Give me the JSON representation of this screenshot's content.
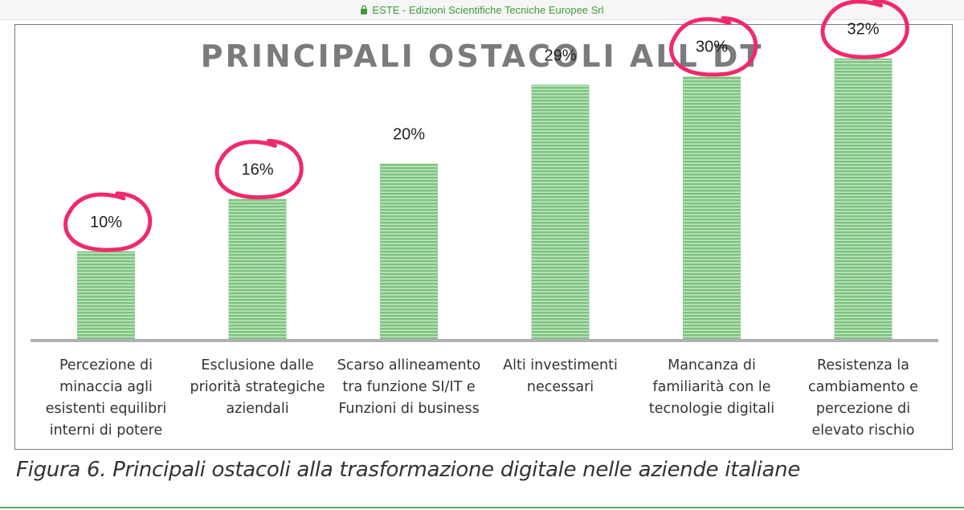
{
  "browser": {
    "site_label": "ESTE - Edizioni Scientifiche Tecniche Europee Srl"
  },
  "caption": "Figura 6. Principali ostacoli alla trasformazione digitale nelle aziende italiane",
  "colors": {
    "bar": "#7cc47f",
    "bar_stripe": "#c9e8c9",
    "highlight": "#ef2a6a",
    "axis": "#b0b0b0",
    "title": "#7b7b7b"
  },
  "chart_data": {
    "type": "bar",
    "title": "PRINCIPALI OSTACOLI ALL DT",
    "xlabel": "",
    "ylabel": "",
    "ylim": [
      0,
      35
    ],
    "grid": false,
    "categories": [
      [
        "Percezione di",
        "minaccia agli",
        "esistenti equilibri",
        "interni di potere"
      ],
      [
        "Esclusione dalle",
        "priorità strategiche",
        "aziendali"
      ],
      [
        "Scarso allineamento",
        "tra funzione SI/IT e",
        "Funzioni di business"
      ],
      [
        "Alti investimenti",
        "necessari"
      ],
      [
        "Mancanza di",
        "familiarità con le",
        "tecnologie digitali"
      ],
      [
        "Resistenza la",
        "cambiamento e",
        "percezione di",
        "elevato rischio"
      ]
    ],
    "values": [
      10,
      16,
      20,
      29,
      30,
      32
    ],
    "data_labels": [
      "10%",
      "16%",
      "20%",
      "29%",
      "30%",
      "32%"
    ],
    "circled": [
      true,
      true,
      false,
      false,
      true,
      true
    ]
  }
}
